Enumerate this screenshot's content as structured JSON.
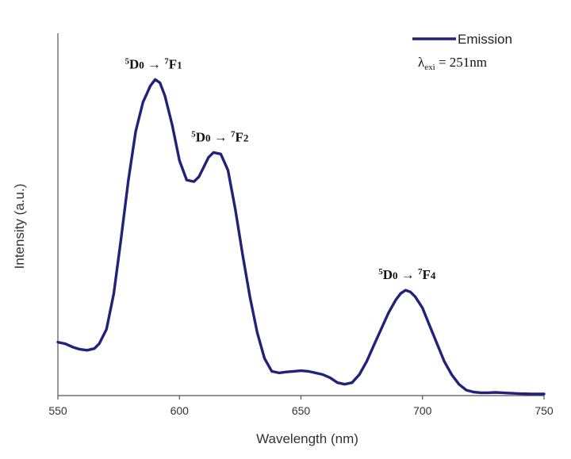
{
  "chart_data": {
    "type": "line",
    "title": "",
    "xlabel": "Wavelength (nm)",
    "ylabel": "Intensity (a.u.)",
    "xlim": [
      550,
      750
    ],
    "ylim": [
      0,
      1
    ],
    "x_ticks": [
      "550",
      "600",
      "650",
      "700",
      "750"
    ],
    "y_ticks": [],
    "grid": false,
    "legend_position": "top-right",
    "series": [
      {
        "name": "Emission",
        "color": "#22227a",
        "x": [
          550,
          553,
          556,
          559,
          562,
          565,
          567,
          570,
          573,
          576,
          579,
          582,
          585,
          588,
          590,
          592,
          594,
          597,
          600,
          603,
          606,
          608,
          610,
          612,
          614,
          617,
          620,
          623,
          626,
          629,
          632,
          635,
          638,
          641,
          644,
          647,
          650,
          653,
          656,
          659,
          662,
          665,
          668,
          671,
          674,
          677,
          680,
          683,
          686,
          689,
          691,
          693,
          695,
          697,
          700,
          703,
          706,
          709,
          712,
          715,
          718,
          721,
          724,
          727,
          730,
          735,
          740,
          745,
          750
        ],
        "y": [
          0.16,
          0.155,
          0.145,
          0.138,
          0.135,
          0.14,
          0.155,
          0.2,
          0.31,
          0.48,
          0.66,
          0.81,
          0.9,
          0.95,
          0.97,
          0.96,
          0.92,
          0.83,
          0.72,
          0.66,
          0.655,
          0.67,
          0.7,
          0.73,
          0.745,
          0.74,
          0.69,
          0.57,
          0.43,
          0.3,
          0.19,
          0.11,
          0.07,
          0.065,
          0.068,
          0.07,
          0.072,
          0.07,
          0.065,
          0.06,
          0.05,
          0.035,
          0.03,
          0.035,
          0.06,
          0.1,
          0.15,
          0.2,
          0.25,
          0.29,
          0.31,
          0.32,
          0.315,
          0.3,
          0.265,
          0.21,
          0.155,
          0.1,
          0.06,
          0.03,
          0.012,
          0.006,
          0.004,
          0.004,
          0.005,
          0.003,
          0.001,
          0.0,
          0.0
        ]
      }
    ],
    "legend": {
      "entries": [
        "Emission"
      ],
      "note": {
        "symbol": "λ",
        "subscript": "exi",
        "text": " = 251nm"
      }
    },
    "annotations": [
      {
        "x": 590,
        "y": 0.97,
        "pre": "5",
        "base": "D",
        "sub": "0",
        "arrow": " → ",
        "pre2": "7",
        "base2": "F",
        "sub2": "1"
      },
      {
        "x": 616,
        "y": 0.745,
        "pre": "5",
        "base": "D",
        "sub": "0",
        "arrow": " → ",
        "pre2": "7",
        "base2": "F",
        "sub2": "2"
      },
      {
        "x": 693,
        "y": 0.32,
        "pre": "5",
        "base": "D",
        "sub": "0",
        "arrow": " → ",
        "pre2": "7",
        "base2": "F",
        "sub2": "4"
      }
    ]
  }
}
